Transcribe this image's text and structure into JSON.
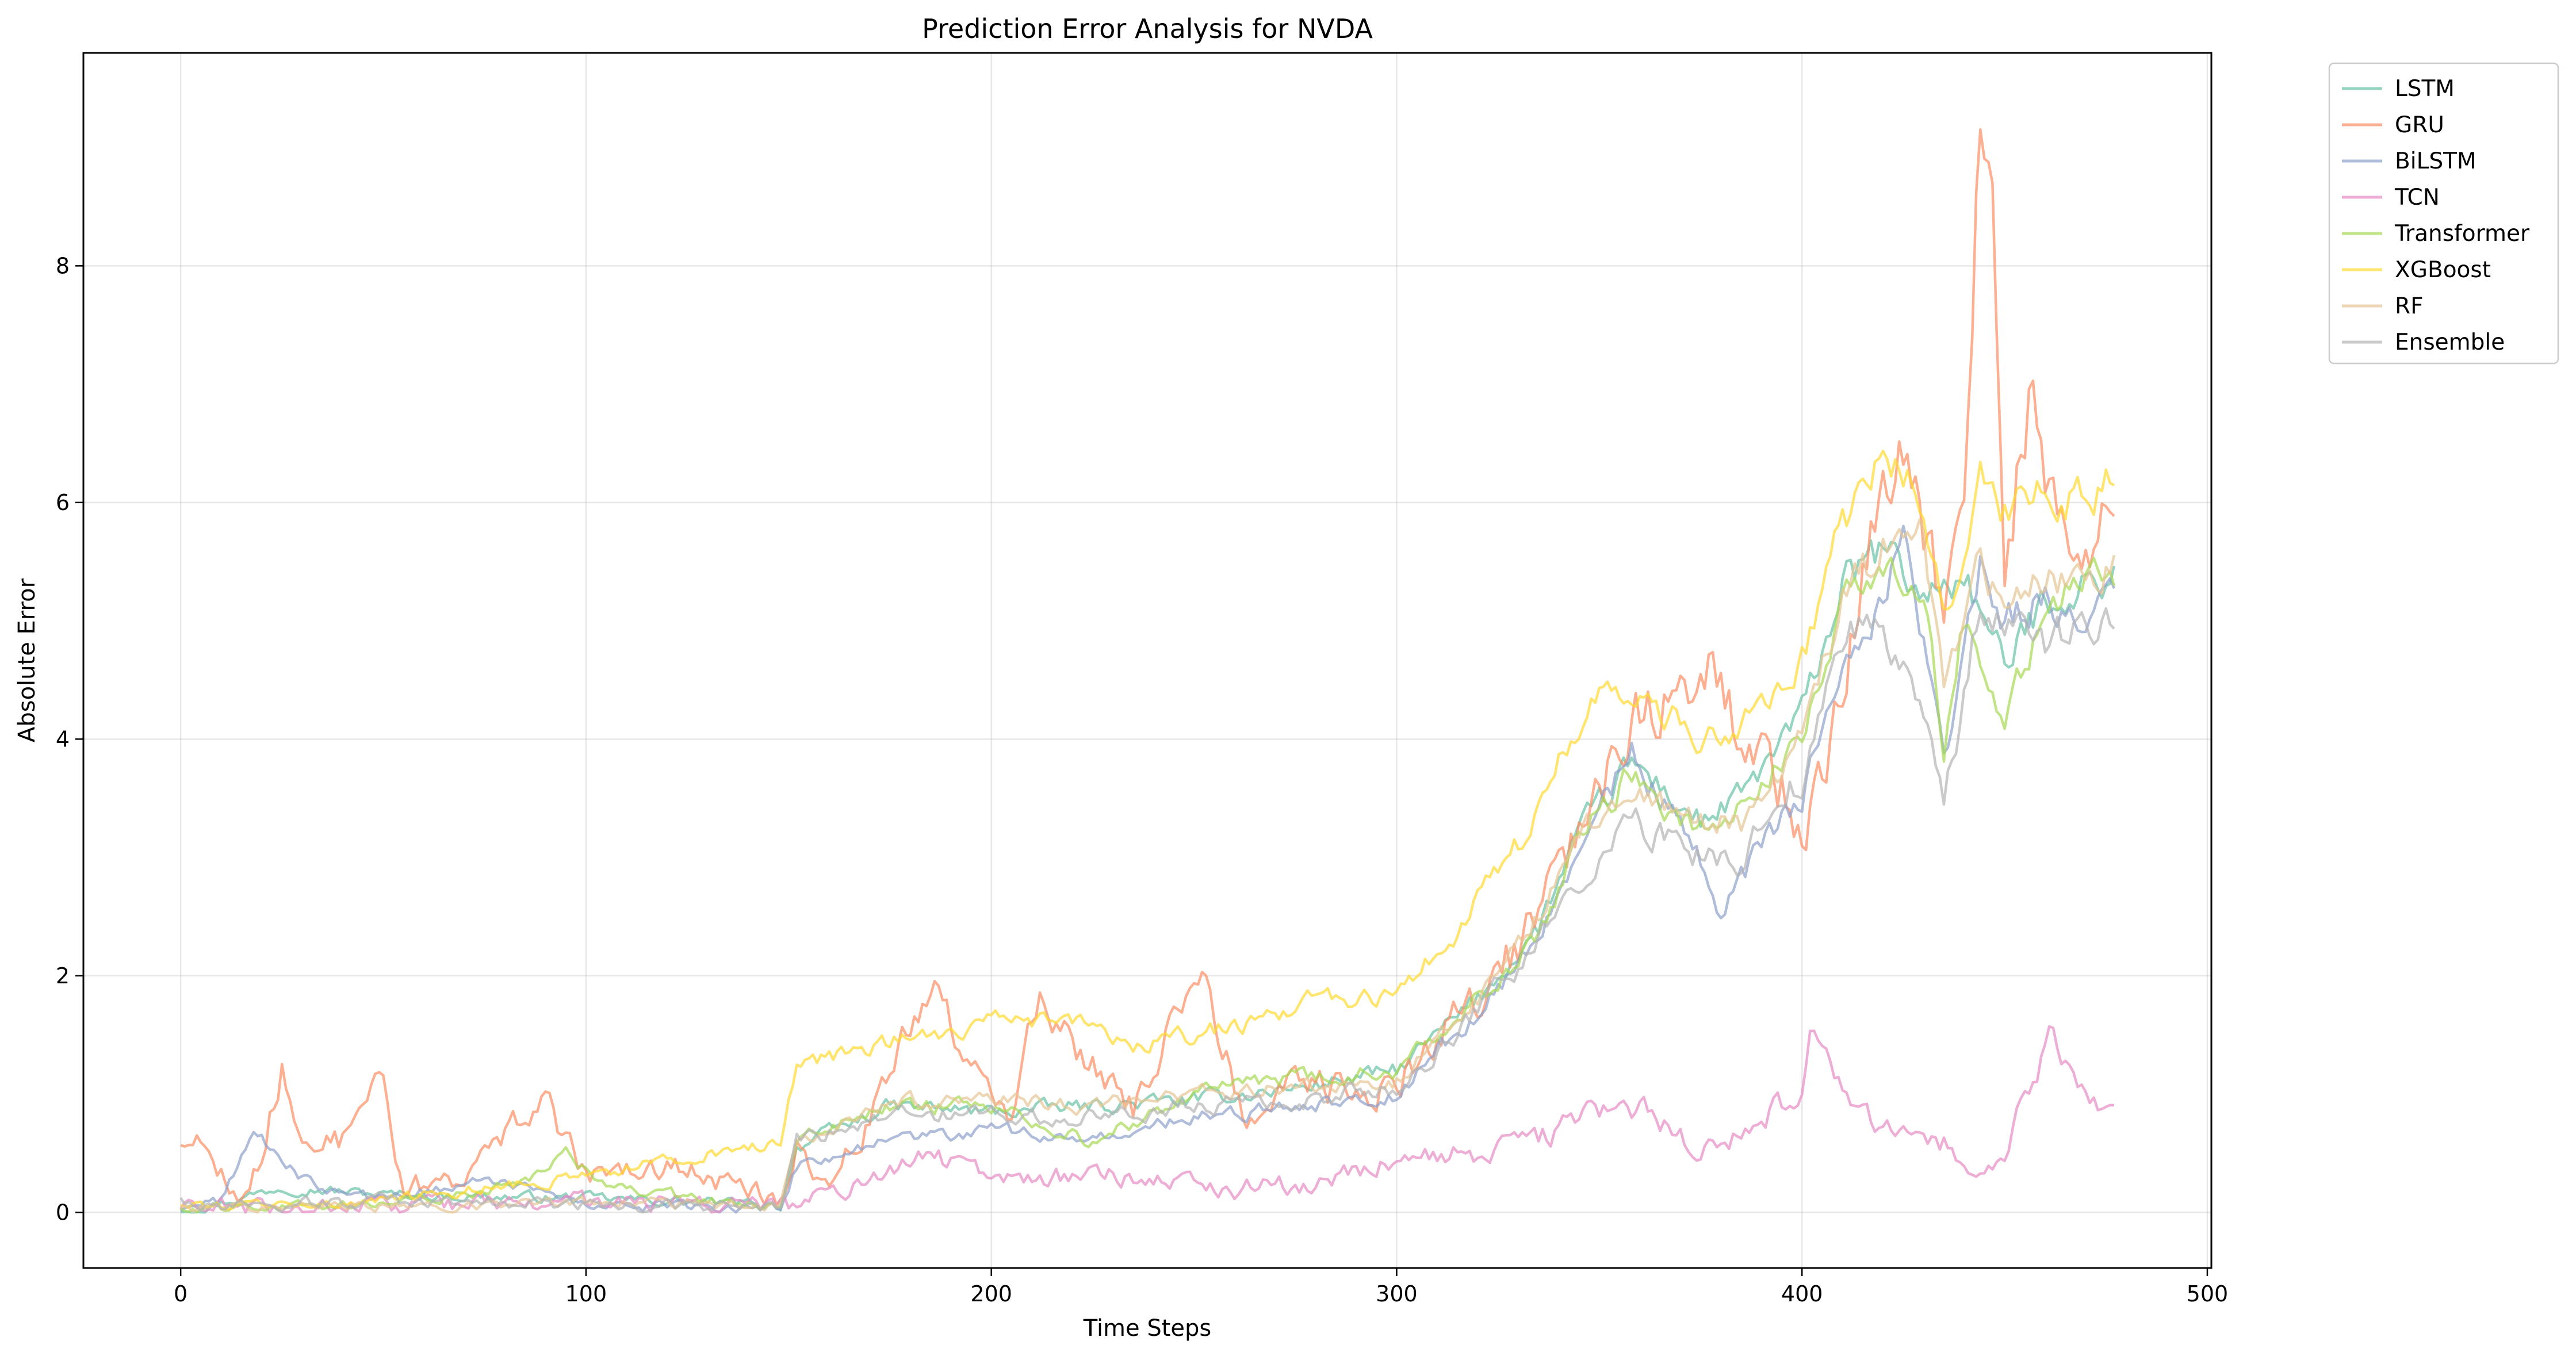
{
  "chart_data": {
    "type": "line",
    "title": "Prediction Error Analysis for NVDA",
    "xlabel": "Time Steps",
    "ylabel": "Absolute Error",
    "xlim": [
      -24,
      501
    ],
    "ylim": [
      -0.47,
      9.8
    ],
    "xticks": [
      0,
      100,
      200,
      300,
      400,
      500
    ],
    "yticks": [
      0,
      2,
      4,
      6,
      8
    ],
    "grid": true,
    "legend_position": "outside-top-right",
    "n_points": 478,
    "series": [
      {
        "name": "LSTM",
        "color": "#66c2a5",
        "knots": [
          [
            0,
            0.02
          ],
          [
            10,
            0.08
          ],
          [
            25,
            0.22
          ],
          [
            50,
            0.15
          ],
          [
            100,
            0.12
          ],
          [
            148,
            0.06
          ],
          [
            152,
            0.55
          ],
          [
            175,
            0.9
          ],
          [
            200,
            0.85
          ],
          [
            225,
            0.9
          ],
          [
            250,
            0.95
          ],
          [
            275,
            1.05
          ],
          [
            300,
            1.2
          ],
          [
            320,
            1.8
          ],
          [
            335,
            2.4
          ],
          [
            345,
            3.2
          ],
          [
            358,
            3.8
          ],
          [
            375,
            3.3
          ],
          [
            385,
            3.5
          ],
          [
            400,
            4.2
          ],
          [
            410,
            5.3
          ],
          [
            420,
            5.6
          ],
          [
            430,
            5.2
          ],
          [
            440,
            5.4
          ],
          [
            450,
            4.6
          ],
          [
            460,
            5.2
          ],
          [
            470,
            5.3
          ],
          [
            477,
            5.4
          ]
        ],
        "noise": 0.1
      },
      {
        "name": "GRU",
        "color": "#fc8d62",
        "knots": [
          [
            0,
            0.6
          ],
          [
            5,
            0.62
          ],
          [
            10,
            0.35
          ],
          [
            15,
            0.1
          ],
          [
            20,
            0.5
          ],
          [
            25,
            1.25
          ],
          [
            30,
            0.6
          ],
          [
            40,
            0.6
          ],
          [
            45,
            1.1
          ],
          [
            50,
            1.0
          ],
          [
            55,
            0.2
          ],
          [
            70,
            0.3
          ],
          [
            80,
            0.7
          ],
          [
            90,
            0.9
          ],
          [
            100,
            0.3
          ],
          [
            120,
            0.4
          ],
          [
            148,
            0.1
          ],
          [
            152,
            0.6
          ],
          [
            160,
            0.2
          ],
          [
            170,
            0.8
          ],
          [
            185,
            1.95
          ],
          [
            195,
            1.2
          ],
          [
            205,
            0.8
          ],
          [
            212,
            1.9
          ],
          [
            220,
            1.4
          ],
          [
            235,
            0.9
          ],
          [
            252,
            2.1
          ],
          [
            262,
            0.8
          ],
          [
            275,
            1.1
          ],
          [
            290,
            1.0
          ],
          [
            300,
            1.1
          ],
          [
            320,
            1.8
          ],
          [
            335,
            2.5
          ],
          [
            345,
            3.3
          ],
          [
            360,
            4.3
          ],
          [
            370,
            4.5
          ],
          [
            378,
            4.7
          ],
          [
            385,
            3.9
          ],
          [
            395,
            3.6
          ],
          [
            400,
            3.0
          ],
          [
            410,
            4.6
          ],
          [
            420,
            5.9
          ],
          [
            425,
            6.2
          ],
          [
            430,
            5.5
          ],
          [
            435,
            5.2
          ],
          [
            440,
            6.0
          ],
          [
            444,
            9.3
          ],
          [
            447,
            8.3
          ],
          [
            450,
            5.6
          ],
          [
            457,
            6.9
          ],
          [
            462,
            6.1
          ],
          [
            470,
            5.7
          ],
          [
            477,
            5.8
          ]
        ],
        "noise": 0.22
      },
      {
        "name": "BiLSTM",
        "color": "#8da0cb",
        "knots": [
          [
            0,
            0.02
          ],
          [
            10,
            0.1
          ],
          [
            18,
            0.7
          ],
          [
            25,
            0.4
          ],
          [
            35,
            0.2
          ],
          [
            50,
            0.1
          ],
          [
            75,
            0.3
          ],
          [
            100,
            0.05
          ],
          [
            148,
            0.04
          ],
          [
            152,
            0.4
          ],
          [
            175,
            0.6
          ],
          [
            200,
            0.7
          ],
          [
            225,
            0.6
          ],
          [
            250,
            0.8
          ],
          [
            275,
            0.9
          ],
          [
            300,
            1.0
          ],
          [
            320,
            1.7
          ],
          [
            335,
            2.3
          ],
          [
            345,
            3.0
          ],
          [
            358,
            3.9
          ],
          [
            375,
            3.0
          ],
          [
            380,
            2.5
          ],
          [
            390,
            3.1
          ],
          [
            400,
            3.5
          ],
          [
            410,
            4.8
          ],
          [
            420,
            5.2
          ],
          [
            425,
            5.8
          ],
          [
            435,
            3.8
          ],
          [
            444,
            5.5
          ],
          [
            450,
            5.0
          ],
          [
            460,
            5.2
          ],
          [
            470,
            4.9
          ],
          [
            477,
            5.3
          ]
        ],
        "noise": 0.1
      },
      {
        "name": "TCN",
        "color": "#e78ac3",
        "knots": [
          [
            0,
            0.03
          ],
          [
            50,
            0.05
          ],
          [
            100,
            0.08
          ],
          [
            150,
            0.06
          ],
          [
            170,
            0.25
          ],
          [
            185,
            0.5
          ],
          [
            200,
            0.3
          ],
          [
            220,
            0.3
          ],
          [
            240,
            0.3
          ],
          [
            260,
            0.2
          ],
          [
            280,
            0.25
          ],
          [
            300,
            0.45
          ],
          [
            320,
            0.5
          ],
          [
            335,
            0.6
          ],
          [
            345,
            0.8
          ],
          [
            360,
            0.9
          ],
          [
            375,
            0.5
          ],
          [
            390,
            0.8
          ],
          [
            400,
            1.0
          ],
          [
            402,
            1.45
          ],
          [
            410,
            1.0
          ],
          [
            420,
            0.7
          ],
          [
            435,
            0.6
          ],
          [
            440,
            0.3
          ],
          [
            450,
            0.4
          ],
          [
            455,
            1.0
          ],
          [
            462,
            1.5
          ],
          [
            470,
            1.0
          ],
          [
            477,
            0.8
          ]
        ],
        "noise": 0.18
      },
      {
        "name": "Transformer",
        "color": "#a6d854",
        "knots": [
          [
            0,
            0.03
          ],
          [
            50,
            0.05
          ],
          [
            85,
            0.25
          ],
          [
            95,
            0.5
          ],
          [
            105,
            0.2
          ],
          [
            148,
            0.05
          ],
          [
            152,
            0.6
          ],
          [
            175,
            0.9
          ],
          [
            200,
            0.9
          ],
          [
            225,
            0.6
          ],
          [
            250,
            1.0
          ],
          [
            275,
            1.15
          ],
          [
            300,
            1.2
          ],
          [
            320,
            1.8
          ],
          [
            335,
            2.3
          ],
          [
            345,
            3.2
          ],
          [
            358,
            3.7
          ],
          [
            375,
            3.2
          ],
          [
            385,
            3.5
          ],
          [
            400,
            4.0
          ],
          [
            410,
            5.2
          ],
          [
            420,
            5.5
          ],
          [
            430,
            5.4
          ],
          [
            435,
            3.9
          ],
          [
            440,
            5.0
          ],
          [
            450,
            4.2
          ],
          [
            460,
            5.0
          ],
          [
            470,
            5.5
          ],
          [
            477,
            5.2
          ]
        ],
        "noise": 0.1
      },
      {
        "name": "XGBoost",
        "color": "#ffd92f",
        "knots": [
          [
            0,
            0.05
          ],
          [
            50,
            0.1
          ],
          [
            100,
            0.3
          ],
          [
            120,
            0.45
          ],
          [
            148,
            0.6
          ],
          [
            152,
            1.25
          ],
          [
            170,
            1.4
          ],
          [
            185,
            1.5
          ],
          [
            200,
            1.6
          ],
          [
            220,
            1.65
          ],
          [
            235,
            1.4
          ],
          [
            250,
            1.5
          ],
          [
            265,
            1.6
          ],
          [
            280,
            1.8
          ],
          [
            300,
            1.8
          ],
          [
            315,
            2.4
          ],
          [
            330,
            3.1
          ],
          [
            340,
            3.9
          ],
          [
            350,
            4.3
          ],
          [
            360,
            4.4
          ],
          [
            375,
            4.0
          ],
          [
            390,
            4.2
          ],
          [
            400,
            4.7
          ],
          [
            410,
            5.8
          ],
          [
            420,
            6.4
          ],
          [
            428,
            6.1
          ],
          [
            435,
            5.0
          ],
          [
            444,
            6.2
          ],
          [
            450,
            5.9
          ],
          [
            460,
            6.1
          ],
          [
            470,
            6.0
          ],
          [
            477,
            6.3
          ]
        ],
        "noise": 0.1
      },
      {
        "name": "RF",
        "color": "#e5c494",
        "knots": [
          [
            0,
            0.03
          ],
          [
            50,
            0.05
          ],
          [
            100,
            0.08
          ],
          [
            148,
            0.06
          ],
          [
            152,
            0.55
          ],
          [
            175,
            0.95
          ],
          [
            200,
            0.95
          ],
          [
            225,
            0.9
          ],
          [
            250,
            1.0
          ],
          [
            275,
            1.05
          ],
          [
            300,
            1.1
          ],
          [
            320,
            1.8
          ],
          [
            335,
            2.5
          ],
          [
            345,
            3.2
          ],
          [
            358,
            3.5
          ],
          [
            375,
            3.3
          ],
          [
            385,
            3.3
          ],
          [
            400,
            4.0
          ],
          [
            410,
            5.2
          ],
          [
            420,
            5.6
          ],
          [
            430,
            5.7
          ],
          [
            435,
            4.5
          ],
          [
            444,
            5.5
          ],
          [
            450,
            5.0
          ],
          [
            460,
            5.4
          ],
          [
            470,
            5.3
          ],
          [
            477,
            5.5
          ]
        ],
        "noise": 0.1
      },
      {
        "name": "Ensemble",
        "color": "#b3b3b3",
        "knots": [
          [
            0,
            0.1
          ],
          [
            10,
            0.05
          ],
          [
            50,
            0.1
          ],
          [
            100,
            0.05
          ],
          [
            148,
            0.04
          ],
          [
            152,
            0.6
          ],
          [
            175,
            0.8
          ],
          [
            200,
            0.85
          ],
          [
            225,
            0.8
          ],
          [
            250,
            0.9
          ],
          [
            275,
            0.95
          ],
          [
            300,
            1.05
          ],
          [
            320,
            1.7
          ],
          [
            335,
            2.3
          ],
          [
            345,
            2.8
          ],
          [
            358,
            3.3
          ],
          [
            375,
            3.0
          ],
          [
            385,
            3.0
          ],
          [
            400,
            3.7
          ],
          [
            410,
            4.9
          ],
          [
            420,
            5.0
          ],
          [
            430,
            4.4
          ],
          [
            435,
            3.4
          ],
          [
            444,
            5.2
          ],
          [
            450,
            4.9
          ],
          [
            460,
            4.8
          ],
          [
            470,
            4.9
          ],
          [
            477,
            4.9
          ]
        ],
        "noise": 0.12
      }
    ]
  }
}
